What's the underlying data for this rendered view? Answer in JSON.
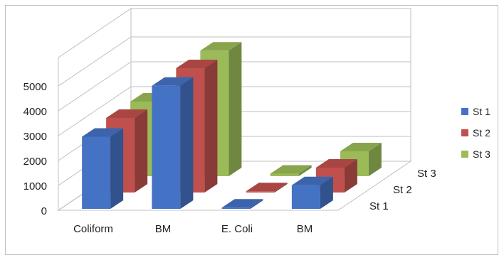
{
  "chart_data": {
    "type": "bar",
    "subtype": "3d-clustered-column",
    "title": "",
    "xlabel": "",
    "ylabel": "",
    "categories": [
      "Coliform",
      "BM",
      "E. Coli",
      "BM"
    ],
    "series": [
      {
        "name": "St 1",
        "values": [
          2900,
          4950,
          50,
          950
        ],
        "color": "#4472C4"
      },
      {
        "name": "St 2",
        "values": [
          3000,
          5000,
          50,
          1000
        ],
        "color": "#C0504D"
      },
      {
        "name": "St 3",
        "values": [
          3000,
          5050,
          100,
          1000
        ],
        "color": "#9BBB59"
      }
    ],
    "depth_labels": [
      "St 1",
      "St 2",
      "St 3"
    ],
    "ylim": [
      0,
      5000
    ],
    "yticks": [
      "0",
      "1000",
      "2000",
      "3000",
      "4000",
      "5000"
    ],
    "grid": true,
    "legend": "right"
  }
}
